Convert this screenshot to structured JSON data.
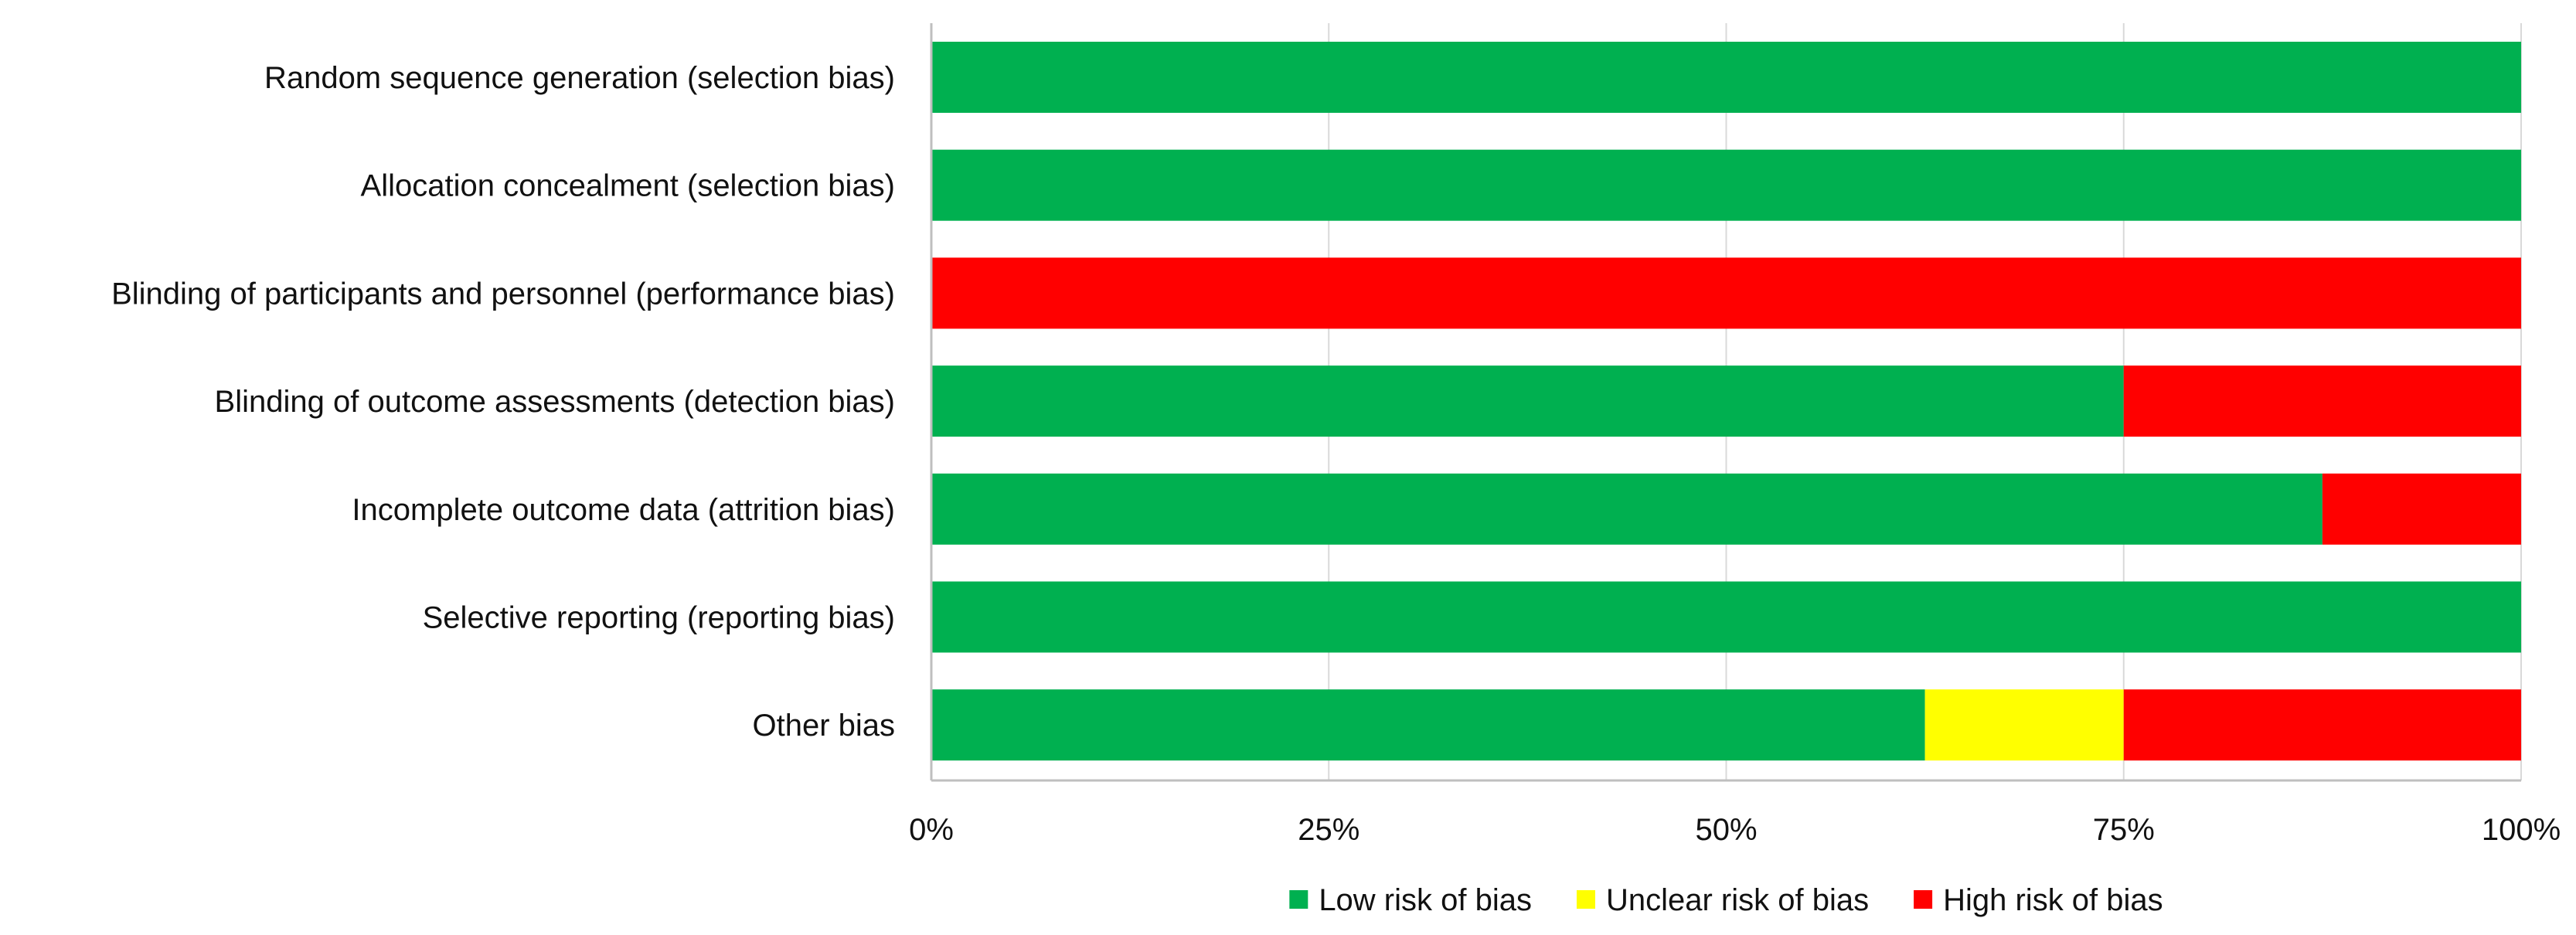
{
  "chart_data": {
    "type": "bar",
    "orientation": "horizontal",
    "stacked": true,
    "categories": [
      "Random sequence generation (selection bias)",
      "Allocation concealment (selection bias)",
      "Blinding of participants and personnel (performance bias)",
      "Blinding of outcome assessments (detection bias)",
      "Incomplete outcome data (attrition bias)",
      "Selective reporting (reporting bias)",
      "Other bias"
    ],
    "series": [
      {
        "name": "Low risk of bias",
        "color": "#00b050",
        "values": [
          100,
          100,
          0,
          75,
          87.5,
          100,
          62.5
        ]
      },
      {
        "name": "Unclear risk of bias",
        "color": "#ffff00",
        "values": [
          0,
          0,
          0,
          0,
          0,
          0,
          12.5
        ]
      },
      {
        "name": "High risk of bias",
        "color": "#ff0000",
        "values": [
          0,
          0,
          100,
          25,
          12.5,
          0,
          25
        ]
      }
    ],
    "xlim": [
      0,
      100
    ],
    "xticks": [
      0,
      25,
      50,
      75,
      100
    ],
    "xtick_labels": [
      "0%",
      "25%",
      "50%",
      "75%",
      "100%"
    ],
    "grid": "vertical",
    "legend": "bottom",
    "title": "",
    "xlabel": "",
    "ylabel": ""
  }
}
